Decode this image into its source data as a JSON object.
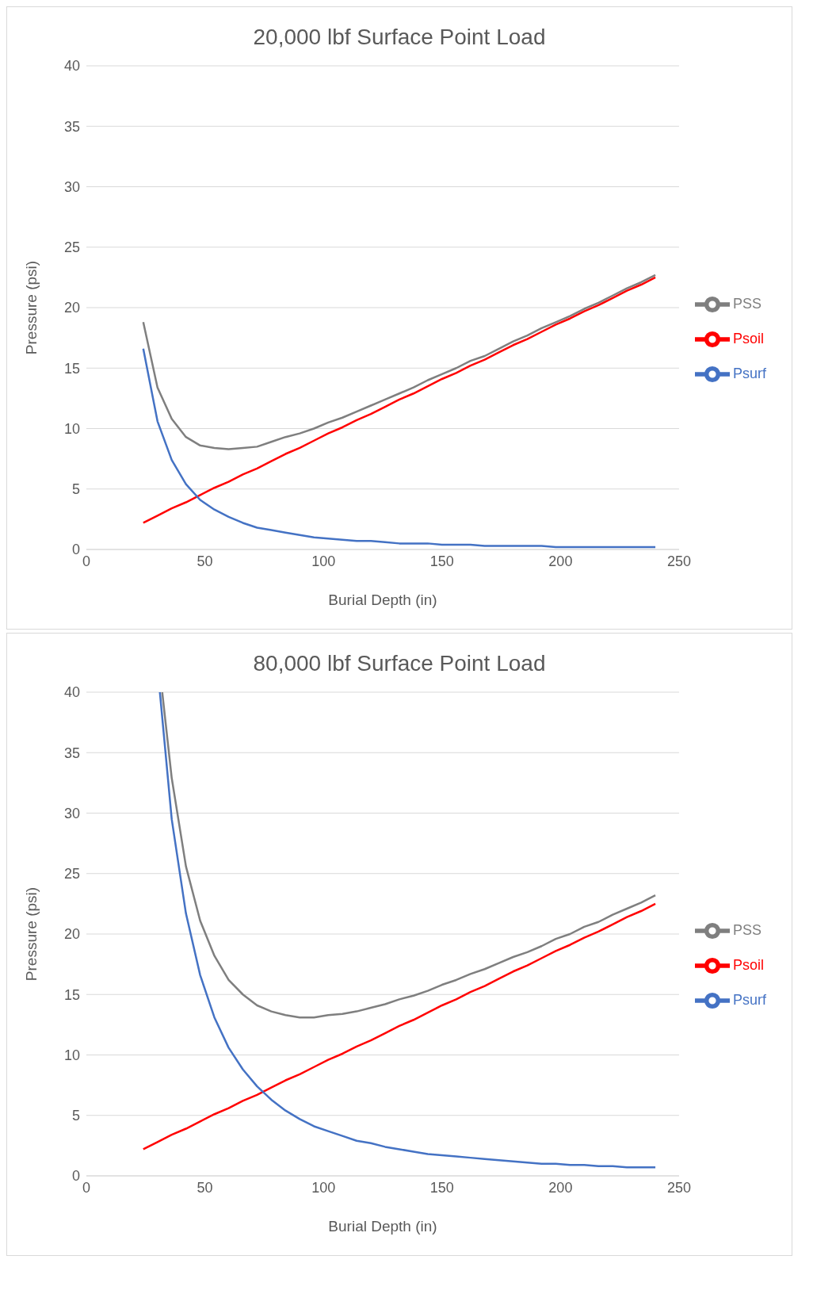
{
  "chart_data": [
    {
      "type": "line",
      "title": "20,000 lbf Surface Point Load",
      "xlabel": "Burial Depth (in)",
      "ylabel": "Pressure (psi)",
      "x": [
        24,
        30,
        36,
        42,
        48,
        54,
        60,
        66,
        72,
        78,
        84,
        90,
        96,
        102,
        108,
        114,
        120,
        126,
        132,
        138,
        144,
        150,
        156,
        162,
        168,
        174,
        180,
        186,
        192,
        198,
        204,
        210,
        216,
        222,
        228,
        234,
        240
      ],
      "series": [
        {
          "name": "Psoil",
          "color": "#ff0000",
          "values": [
            2.2,
            2.8,
            3.4,
            3.9,
            4.5,
            5.1,
            5.6,
            6.2,
            6.7,
            7.3,
            7.9,
            8.4,
            9.0,
            9.6,
            10.1,
            10.7,
            11.2,
            11.8,
            12.4,
            12.9,
            13.5,
            14.1,
            14.6,
            15.2,
            15.7,
            16.3,
            16.9,
            17.4,
            18.0,
            18.6,
            19.1,
            19.7,
            20.2,
            20.8,
            21.4,
            21.9,
            22.5
          ]
        },
        {
          "name": "Psurf",
          "color": "#4472c4",
          "values": [
            16.6,
            10.6,
            7.4,
            5.4,
            4.1,
            3.3,
            2.7,
            2.2,
            1.8,
            1.6,
            1.4,
            1.2,
            1.0,
            0.9,
            0.8,
            0.7,
            0.7,
            0.6,
            0.5,
            0.5,
            0.5,
            0.4,
            0.4,
            0.4,
            0.3,
            0.3,
            0.3,
            0.3,
            0.3,
            0.2,
            0.2,
            0.2,
            0.2,
            0.2,
            0.2,
            0.2,
            0.2
          ]
        },
        {
          "name": "PSS",
          "color": "#7f7f7f",
          "values": [
            18.8,
            13.4,
            10.8,
            9.3,
            8.6,
            8.4,
            8.3,
            8.4,
            8.5,
            8.9,
            9.3,
            9.6,
            10.0,
            10.5,
            10.9,
            11.4,
            11.9,
            12.4,
            12.9,
            13.4,
            14.0,
            14.5,
            15.0,
            15.6,
            16.0,
            16.6,
            17.2,
            17.7,
            18.3,
            18.8,
            19.3,
            19.9,
            20.4,
            21.0,
            21.6,
            22.1,
            22.7
          ]
        }
      ],
      "xlim": [
        0,
        250
      ],
      "xticks": [
        0,
        50,
        100,
        150,
        200,
        250
      ],
      "ylim": [
        0,
        40
      ],
      "yticks": [
        0,
        5,
        10,
        15,
        20,
        25,
        30,
        35,
        40
      ],
      "grid": "y",
      "legend": "right"
    },
    {
      "type": "line",
      "title": "80,000 lbf Surface Point Load",
      "xlabel": "Burial Depth (in)",
      "ylabel": "Pressure (psi)",
      "x": [
        24,
        30,
        36,
        42,
        48,
        54,
        60,
        66,
        72,
        78,
        84,
        90,
        96,
        102,
        108,
        114,
        120,
        126,
        132,
        138,
        144,
        150,
        156,
        162,
        168,
        174,
        180,
        186,
        192,
        198,
        204,
        210,
        216,
        222,
        228,
        234,
        240
      ],
      "series": [
        {
          "name": "Psoil",
          "color": "#ff0000",
          "values": [
            2.2,
            2.8,
            3.4,
            3.9,
            4.5,
            5.1,
            5.6,
            6.2,
            6.7,
            7.3,
            7.9,
            8.4,
            9.0,
            9.6,
            10.1,
            10.7,
            11.2,
            11.8,
            12.4,
            12.9,
            13.5,
            14.1,
            14.6,
            15.2,
            15.7,
            16.3,
            16.9,
            17.4,
            18.0,
            18.6,
            19.1,
            19.7,
            20.2,
            20.8,
            21.4,
            21.9,
            22.5
          ]
        },
        {
          "name": "Psurf",
          "color": "#4472c4",
          "x": [
            31,
            36,
            42,
            48,
            54,
            60,
            66,
            72,
            78,
            84,
            90,
            96,
            102,
            108,
            114,
            120,
            126,
            132,
            138,
            144,
            150,
            156,
            162,
            168,
            174,
            180,
            186,
            192,
            198,
            204,
            210,
            216,
            222,
            228,
            234,
            240
          ],
          "values": [
            40,
            29.5,
            21.7,
            16.6,
            13.1,
            10.6,
            8.8,
            7.4,
            6.3,
            5.4,
            4.7,
            4.1,
            3.7,
            3.3,
            2.9,
            2.7,
            2.4,
            2.2,
            2.0,
            1.8,
            1.7,
            1.6,
            1.5,
            1.4,
            1.3,
            1.2,
            1.1,
            1.0,
            1.0,
            0.9,
            0.9,
            0.8,
            0.8,
            0.7,
            0.7,
            0.7
          ]
        },
        {
          "name": "PSS",
          "color": "#7f7f7f",
          "x": [
            32,
            36,
            42,
            48,
            54,
            60,
            66,
            72,
            78,
            84,
            90,
            96,
            102,
            108,
            114,
            120,
            126,
            132,
            138,
            144,
            150,
            156,
            162,
            168,
            174,
            180,
            186,
            192,
            198,
            204,
            210,
            216,
            222,
            228,
            234,
            240
          ],
          "values": [
            40,
            32.9,
            25.6,
            21.1,
            18.2,
            16.2,
            15.0,
            14.1,
            13.6,
            13.3,
            13.1,
            13.1,
            13.3,
            13.4,
            13.6,
            13.9,
            14.2,
            14.6,
            14.9,
            15.3,
            15.8,
            16.2,
            16.7,
            17.1,
            17.6,
            18.1,
            18.5,
            19.0,
            19.6,
            20.0,
            20.6,
            21.0,
            21.6,
            22.1,
            22.6,
            23.2
          ]
        }
      ],
      "xlim": [
        0,
        250
      ],
      "xticks": [
        0,
        50,
        100,
        150,
        200,
        250
      ],
      "ylim": [
        0,
        40
      ],
      "yticks": [
        0,
        5,
        10,
        15,
        20,
        25,
        30,
        35,
        40
      ],
      "grid": "y",
      "legend": "right"
    }
  ]
}
